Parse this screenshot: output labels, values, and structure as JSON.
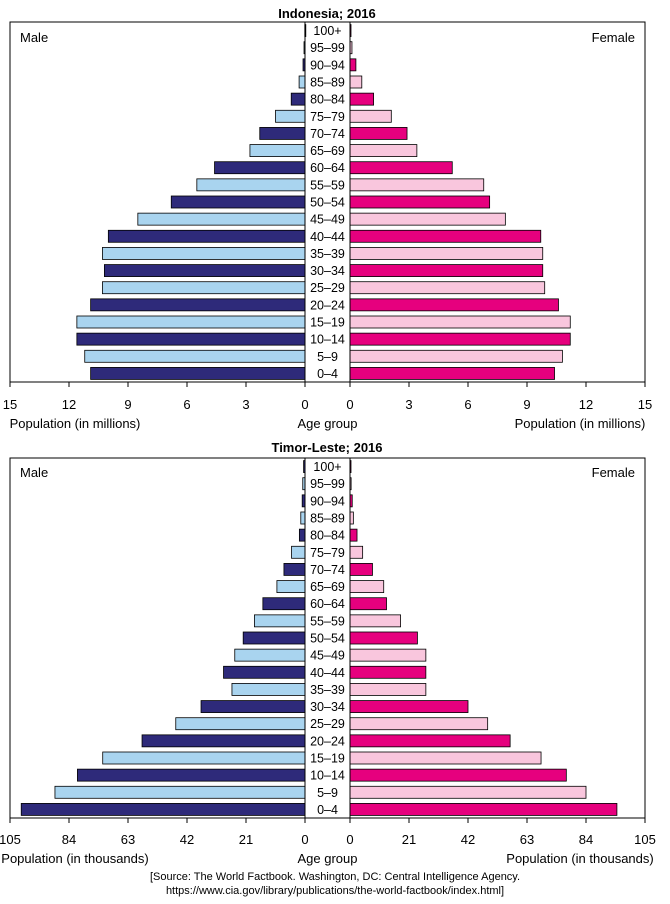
{
  "colors": {
    "male_dark": "#2e2a7a",
    "male_light": "#a9d4ef",
    "female_dark": "#e6007e",
    "female_light": "#f9c6dd"
  },
  "chart_data": [
    {
      "type": "bar",
      "orientation": "horizontal",
      "subtype": "population-pyramid",
      "title": "Indonesia; 2016",
      "left_label": "Male",
      "right_label": "Female",
      "center_label": "Age group",
      "xlabel_left": "Population (in millions)",
      "xlabel_right": "Population (in millions)",
      "xlim": [
        0,
        15
      ],
      "ticks": [
        15,
        12,
        9,
        6,
        3,
        0
      ],
      "ticks_right": [
        0,
        3,
        6,
        9,
        12,
        15
      ],
      "categories": [
        "0–4",
        "5–9",
        "10–14",
        "15–19",
        "20–24",
        "25–29",
        "30–34",
        "35–39",
        "40–44",
        "45–49",
        "50–54",
        "55–59",
        "60–64",
        "65–69",
        "70–74",
        "75–79",
        "80–84",
        "85–89",
        "90–94",
        "95–99",
        "100+"
      ],
      "series": [
        {
          "name": "Male",
          "values": [
            10.9,
            11.2,
            11.6,
            11.6,
            10.9,
            10.3,
            10.2,
            10.3,
            10.0,
            8.5,
            6.8,
            5.5,
            4.6,
            2.8,
            2.3,
            1.5,
            0.7,
            0.3,
            0.1,
            0.05,
            0.01
          ]
        },
        {
          "name": "Female",
          "values": [
            10.4,
            10.8,
            11.2,
            11.2,
            10.6,
            9.9,
            9.8,
            9.8,
            9.7,
            7.9,
            7.1,
            6.8,
            5.2,
            3.4,
            2.9,
            2.1,
            1.2,
            0.6,
            0.3,
            0.1,
            0.02
          ]
        }
      ]
    },
    {
      "type": "bar",
      "orientation": "horizontal",
      "subtype": "population-pyramid",
      "title": "Timor-Leste; 2016",
      "left_label": "Male",
      "right_label": "Female",
      "center_label": "Age group",
      "xlabel_left": "Population (in thousands)",
      "xlabel_right": "Population (in thousands)",
      "xlim": [
        0,
        105
      ],
      "ticks": [
        105,
        84,
        63,
        42,
        21,
        0
      ],
      "ticks_right": [
        0,
        21,
        42,
        63,
        84,
        105
      ],
      "categories": [
        "0–4",
        "5–9",
        "10–14",
        "15–19",
        "20–24",
        "25–29",
        "30–34",
        "35–39",
        "40–44",
        "45–49",
        "50–54",
        "55–59",
        "60–64",
        "65–69",
        "70–74",
        "75–79",
        "80–84",
        "85–89",
        "90–94",
        "95–99",
        "100+"
      ],
      "series": [
        {
          "name": "Male",
          "values": [
            101,
            89,
            81,
            72,
            58,
            46,
            37,
            26,
            29,
            25,
            22,
            18,
            15,
            10,
            7.5,
            4.8,
            2.0,
            1.5,
            1.0,
            0.8,
            0.5
          ]
        },
        {
          "name": "Female",
          "values": [
            95,
            84,
            77,
            68,
            57,
            49,
            42,
            27,
            27,
            27,
            24,
            18,
            13,
            12,
            8,
            4.5,
            2.5,
            1.2,
            0.8,
            0.4,
            0.3
          ]
        }
      ]
    }
  ],
  "source": {
    "line1": "[Source: The World Factbook. Washington, DC: Central Intelligence Agency.",
    "line2": "https://www.cia.gov/library/publications/the-world-factbook/index.html]"
  }
}
